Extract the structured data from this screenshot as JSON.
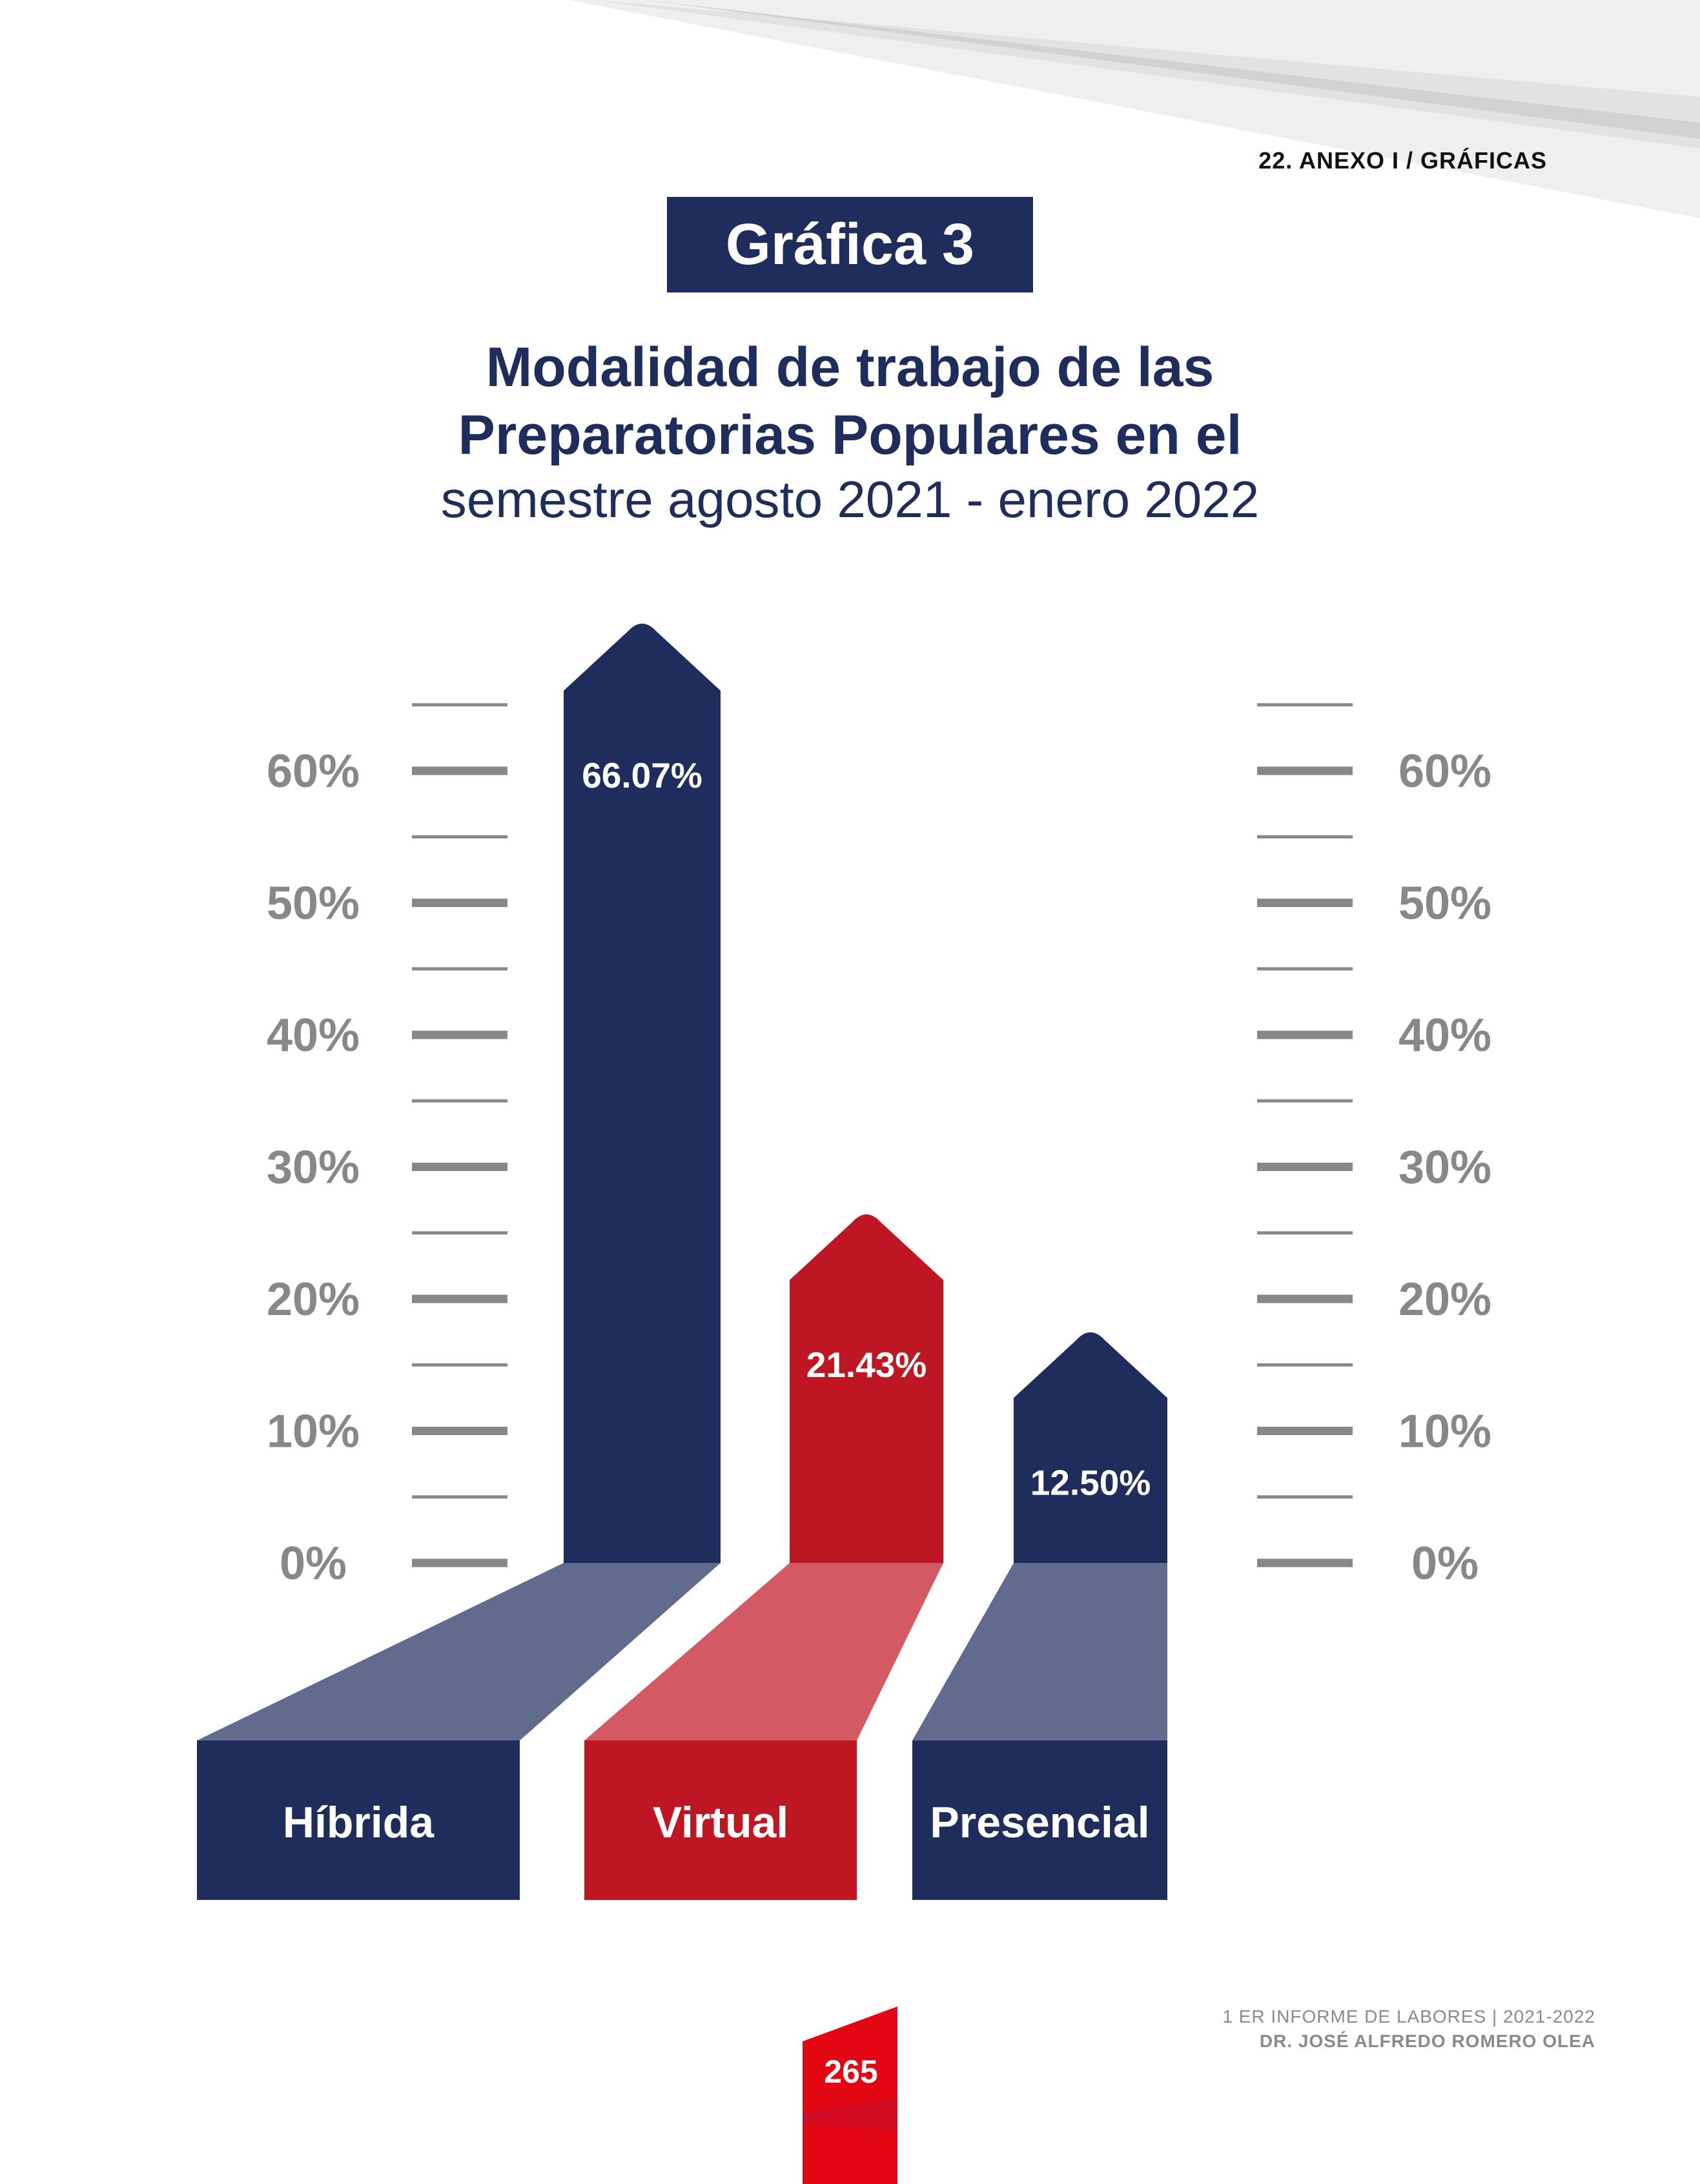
{
  "header": {
    "section_label": "22.  ANEXO I / GRÁFICAS",
    "badge": "Gráfica 3"
  },
  "chart_data": {
    "type": "bar",
    "title_line1": "Modalidad de trabajo de las",
    "title_line2": "Preparatorias Populares en el",
    "subtitle": "semestre agosto 2021 - enero 2022",
    "categories": [
      "Híbrida",
      "Virtual",
      "Presencial"
    ],
    "values": [
      66.07,
      21.43,
      12.5
    ],
    "value_labels": [
      "66.07%",
      "21.43%",
      "12.50%"
    ],
    "colors": [
      "#1f2d5c",
      "#be1623",
      "#1f2d5c"
    ],
    "ticks": [
      "0%",
      "10%",
      "20%",
      "30%",
      "40%",
      "50%",
      "60%"
    ],
    "ylim": [
      0,
      65
    ],
    "grid": false,
    "axis_color": "#888888"
  },
  "footer": {
    "report": "1 ER INFORME DE LABORES | 2021-2022",
    "author": "DR. JOSÉ ALFREDO ROMERO OLEA",
    "page_number": "265",
    "accent_color": "#e30613"
  }
}
